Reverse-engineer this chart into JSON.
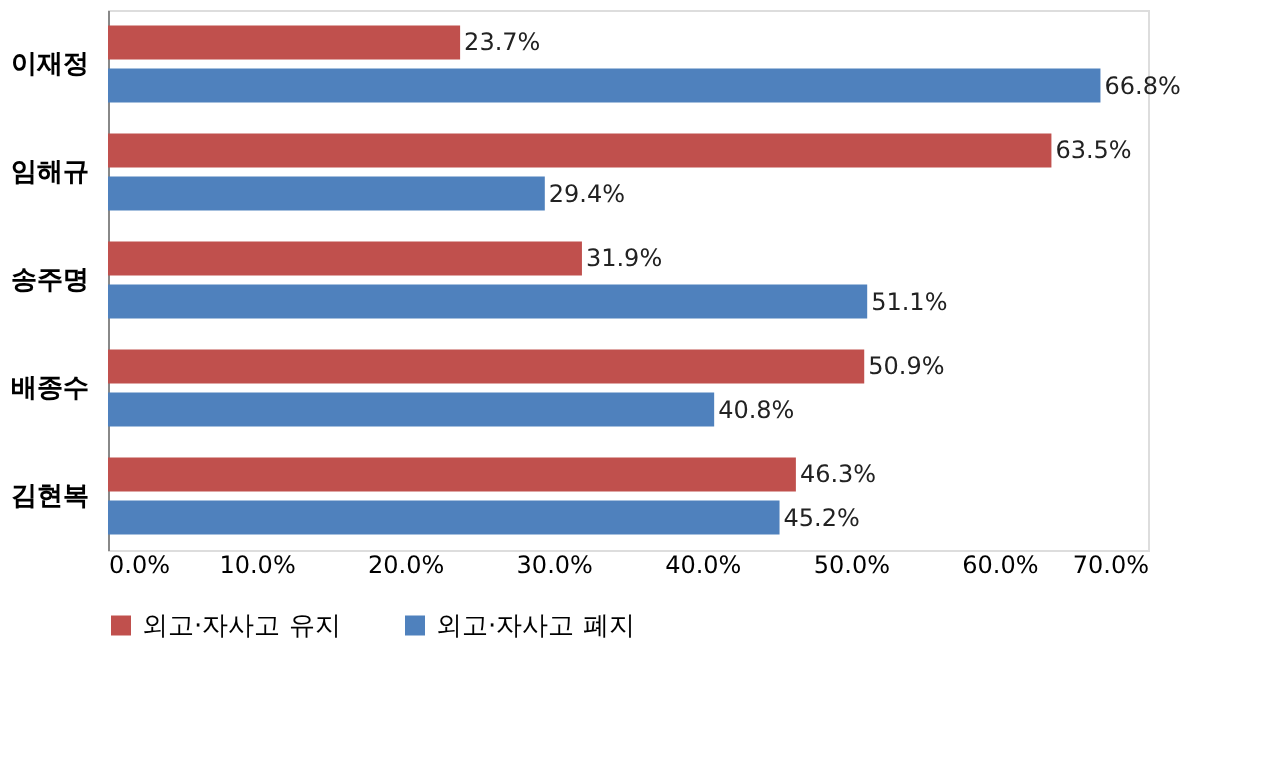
{
  "chart_data": {
    "type": "bar",
    "orientation": "horizontal",
    "categories": [
      "이재정",
      "임해규",
      "송주명",
      "배종수",
      "김현복"
    ],
    "series": [
      {
        "name": "외고·자사고 유지",
        "color": "#c0504d",
        "values": [
          23.7,
          63.5,
          31.9,
          50.9,
          46.3
        ],
        "value_labels": [
          "23.7%",
          "63.5%",
          "31.9%",
          "50.9%",
          "46.3%"
        ]
      },
      {
        "name": "외고·자사고 폐지",
        "color": "#4f81bd",
        "values": [
          66.8,
          29.4,
          51.1,
          40.8,
          45.2
        ],
        "value_labels": [
          "66.8%",
          "29.4%",
          "51.1%",
          "40.8%",
          "45.2%"
        ]
      }
    ],
    "xlim": [
      0,
      70
    ],
    "xticks": [
      {
        "value": 0,
        "label": "0.0%"
      },
      {
        "value": 10,
        "label": "10.0%"
      },
      {
        "value": 20,
        "label": "20.0%"
      },
      {
        "value": 30,
        "label": "30.0%"
      },
      {
        "value": 40,
        "label": "40.0%"
      },
      {
        "value": 50,
        "label": "50.0%"
      },
      {
        "value": 60,
        "label": "60.0%"
      },
      {
        "value": 70,
        "label": "70.0%"
      }
    ],
    "grid": false,
    "legend": "bottom"
  }
}
